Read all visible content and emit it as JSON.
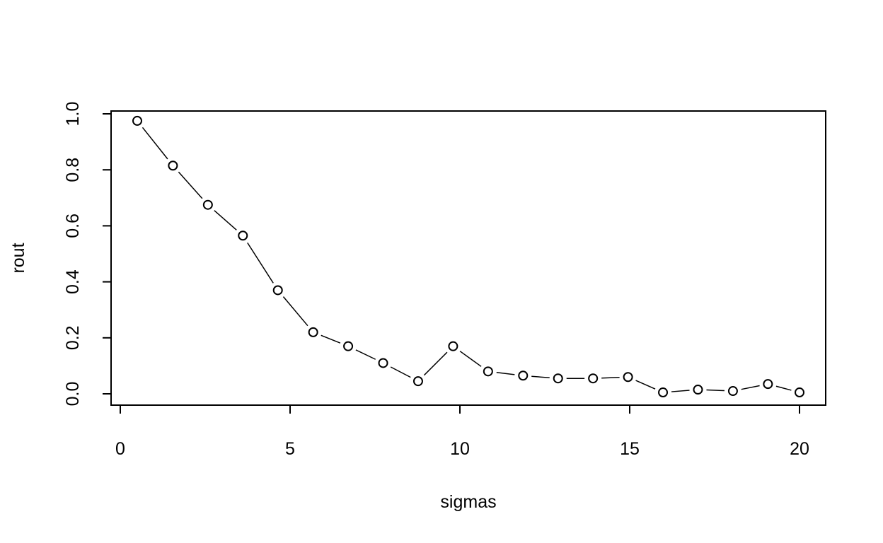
{
  "chart_data": {
    "type": "scatter",
    "style": "points-connected-by-line-segments",
    "xlabel": "sigmas",
    "ylabel": "rout",
    "xlim": [
      0,
      20
    ],
    "ylim": [
      0,
      1
    ],
    "x_ticks": [
      "0",
      "5",
      "10",
      "15",
      "20"
    ],
    "y_ticks": [
      "0.0",
      "0.2",
      "0.4",
      "0.6",
      "0.8",
      "1.0"
    ],
    "grid": false,
    "series": [
      {
        "x": [
          0.5,
          1.55,
          2.58,
          3.61,
          4.64,
          5.68,
          6.71,
          7.74,
          8.77,
          9.8,
          10.83,
          11.86,
          12.89,
          13.92,
          14.95,
          15.98,
          17.01,
          18.04,
          19.07,
          20.0
        ],
        "y": [
          0.975,
          0.815,
          0.675,
          0.565,
          0.37,
          0.22,
          0.17,
          0.11,
          0.045,
          0.17,
          0.08,
          0.065,
          0.055,
          0.055,
          0.06,
          0.005,
          0.015,
          0.01,
          0.035,
          0.005
        ]
      }
    ]
  }
}
